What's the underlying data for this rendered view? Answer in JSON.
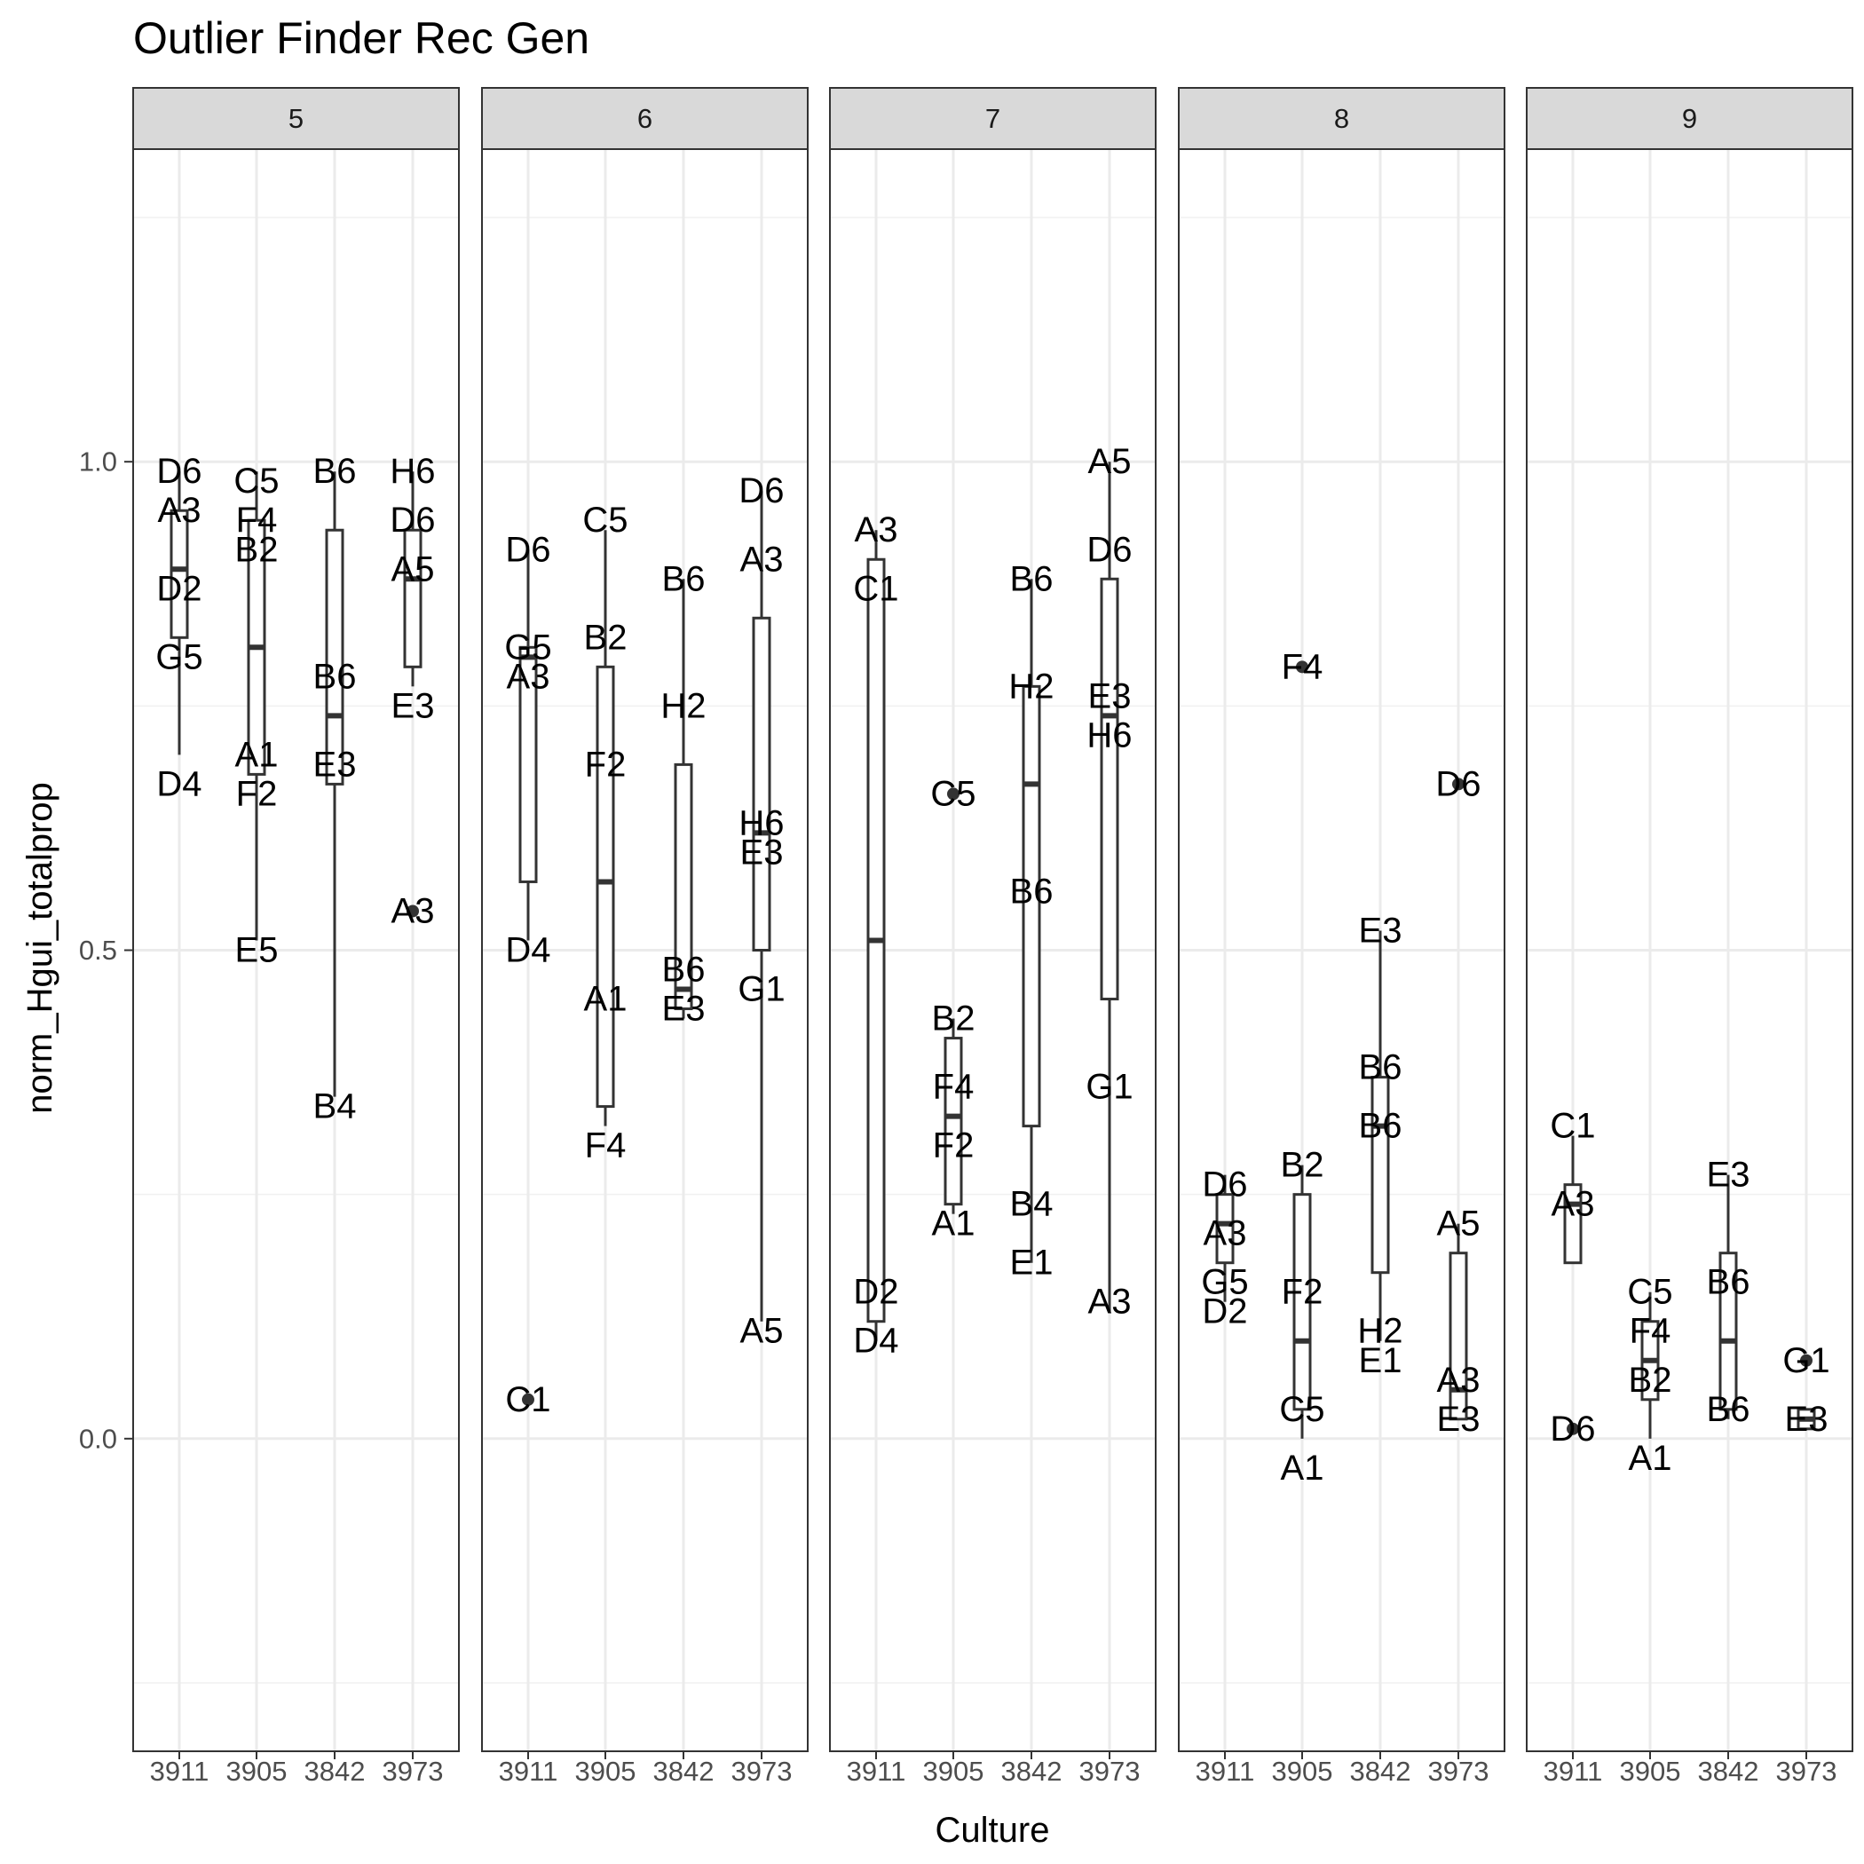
{
  "chart_data": {
    "type": "boxplot",
    "title": "Outlier Finder Rec Gen",
    "xlabel": "Culture",
    "ylabel": "norm_Hgui_totalprop",
    "ylim": [
      -0.32,
      1.32
    ],
    "yticks": [
      0.0,
      0.5,
      1.0
    ],
    "ytick_labels": [
      "0.0",
      "0.5",
      "1.0"
    ],
    "grid": true,
    "categories": [
      "3911",
      "3905",
      "3842",
      "3973"
    ],
    "panels": [
      {
        "facet": "5",
        "boxes": [
          {
            "culture": "3911",
            "lower": 0.7,
            "q1": 0.82,
            "median": 0.89,
            "q3": 0.95,
            "upper": 0.99,
            "outliers": []
          },
          {
            "culture": "3905",
            "lower": 0.51,
            "q1": 0.68,
            "median": 0.81,
            "q3": 0.94,
            "upper": 0.99,
            "outliers": []
          },
          {
            "culture": "3842",
            "lower": 0.35,
            "q1": 0.67,
            "median": 0.74,
            "q3": 0.93,
            "upper": 0.99,
            "outliers": []
          },
          {
            "culture": "3973",
            "lower": 0.77,
            "q1": 0.79,
            "median": 0.88,
            "q3": 0.93,
            "upper": 0.99,
            "outliers": [
              0.54
            ]
          }
        ],
        "labels": [
          {
            "culture": "3911",
            "text": "D6",
            "y": 0.99
          },
          {
            "culture": "3911",
            "text": "A3",
            "y": 0.95
          },
          {
            "culture": "3911",
            "text": "D2",
            "y": 0.87
          },
          {
            "culture": "3911",
            "text": "G5",
            "y": 0.8
          },
          {
            "culture": "3911",
            "text": "D4",
            "y": 0.67
          },
          {
            "culture": "3905",
            "text": "C5",
            "y": 0.98
          },
          {
            "culture": "3905",
            "text": "F4",
            "y": 0.94
          },
          {
            "culture": "3905",
            "text": "B2",
            "y": 0.91
          },
          {
            "culture": "3905",
            "text": "A1",
            "y": 0.7
          },
          {
            "culture": "3905",
            "text": "F2",
            "y": 0.66
          },
          {
            "culture": "3905",
            "text": "E5",
            "y": 0.5
          },
          {
            "culture": "3842",
            "text": "B6",
            "y": 0.99
          },
          {
            "culture": "3842",
            "text": "B6",
            "y": 0.78
          },
          {
            "culture": "3842",
            "text": "E3",
            "y": 0.69
          },
          {
            "culture": "3842",
            "text": "B4",
            "y": 0.34
          },
          {
            "culture": "3973",
            "text": "H6",
            "y": 0.99
          },
          {
            "culture": "3973",
            "text": "D6",
            "y": 0.94
          },
          {
            "culture": "3973",
            "text": "A5",
            "y": 0.89
          },
          {
            "culture": "3973",
            "text": "E3",
            "y": 0.75
          },
          {
            "culture": "3973",
            "text": "A3",
            "y": 0.54
          }
        ]
      },
      {
        "facet": "6",
        "boxes": [
          {
            "culture": "3911",
            "lower": 0.51,
            "q1": 0.57,
            "median": 0.8,
            "q3": 0.81,
            "upper": 0.91,
            "outliers": [
              0.04
            ]
          },
          {
            "culture": "3905",
            "lower": 0.32,
            "q1": 0.34,
            "median": 0.57,
            "q3": 0.79,
            "upper": 0.93,
            "outliers": []
          },
          {
            "culture": "3842",
            "lower": 0.43,
            "q1": 0.44,
            "median": 0.46,
            "q3": 0.69,
            "upper": 0.88,
            "outliers": []
          },
          {
            "culture": "3973",
            "lower": 0.12,
            "q1": 0.5,
            "median": 0.62,
            "q3": 0.84,
            "upper": 0.97,
            "outliers": []
          }
        ],
        "labels": [
          {
            "culture": "3911",
            "text": "D6",
            "y": 0.91
          },
          {
            "culture": "3911",
            "text": "G5",
            "y": 0.81
          },
          {
            "culture": "3911",
            "text": "A3",
            "y": 0.78
          },
          {
            "culture": "3911",
            "text": "D4",
            "y": 0.5
          },
          {
            "culture": "3911",
            "text": "C1",
            "y": 0.04
          },
          {
            "culture": "3905",
            "text": "C5",
            "y": 0.94
          },
          {
            "culture": "3905",
            "text": "B2",
            "y": 0.82
          },
          {
            "culture": "3905",
            "text": "F2",
            "y": 0.69
          },
          {
            "culture": "3905",
            "text": "A1",
            "y": 0.45
          },
          {
            "culture": "3905",
            "text": "F4",
            "y": 0.3
          },
          {
            "culture": "3842",
            "text": "B6",
            "y": 0.88
          },
          {
            "culture": "3842",
            "text": "H2",
            "y": 0.75
          },
          {
            "culture": "3842",
            "text": "B6",
            "y": 0.48
          },
          {
            "culture": "3842",
            "text": "E3",
            "y": 0.44
          },
          {
            "culture": "3973",
            "text": "D6",
            "y": 0.97
          },
          {
            "culture": "3973",
            "text": "A3",
            "y": 0.9
          },
          {
            "culture": "3973",
            "text": "H6",
            "y": 0.63
          },
          {
            "culture": "3973",
            "text": "E3",
            "y": 0.6
          },
          {
            "culture": "3973",
            "text": "G1",
            "y": 0.46
          },
          {
            "culture": "3973",
            "text": "A5",
            "y": 0.11
          }
        ]
      },
      {
        "facet": "7",
        "boxes": [
          {
            "culture": "3911",
            "lower": 0.1,
            "q1": 0.12,
            "median": 0.51,
            "q3": 0.9,
            "upper": 0.93,
            "outliers": []
          },
          {
            "culture": "3905",
            "lower": 0.23,
            "q1": 0.24,
            "median": 0.33,
            "q3": 0.41,
            "upper": 0.43,
            "outliers": [
              0.66
            ]
          },
          {
            "culture": "3842",
            "lower": 0.18,
            "q1": 0.32,
            "median": 0.67,
            "q3": 0.77,
            "upper": 0.88,
            "outliers": []
          },
          {
            "culture": "3973",
            "lower": 0.13,
            "q1": 0.45,
            "median": 0.74,
            "q3": 0.88,
            "upper": 1.0,
            "outliers": []
          }
        ],
        "labels": [
          {
            "culture": "3911",
            "text": "A3",
            "y": 0.93
          },
          {
            "culture": "3911",
            "text": "C1",
            "y": 0.87
          },
          {
            "culture": "3911",
            "text": "D2",
            "y": 0.15
          },
          {
            "culture": "3911",
            "text": "D4",
            "y": 0.1
          },
          {
            "culture": "3905",
            "text": "C5",
            "y": 0.66
          },
          {
            "culture": "3905",
            "text": "B2",
            "y": 0.43
          },
          {
            "culture": "3905",
            "text": "F4",
            "y": 0.36
          },
          {
            "culture": "3905",
            "text": "F2",
            "y": 0.3
          },
          {
            "culture": "3905",
            "text": "A1",
            "y": 0.22
          },
          {
            "culture": "3842",
            "text": "B6",
            "y": 0.88
          },
          {
            "culture": "3842",
            "text": "H2",
            "y": 0.77
          },
          {
            "culture": "3842",
            "text": "B6",
            "y": 0.56
          },
          {
            "culture": "3842",
            "text": "B4",
            "y": 0.24
          },
          {
            "culture": "3842",
            "text": "E1",
            "y": 0.18
          },
          {
            "culture": "3973",
            "text": "A5",
            "y": 1.0
          },
          {
            "culture": "3973",
            "text": "D6",
            "y": 0.91
          },
          {
            "culture": "3973",
            "text": "E3",
            "y": 0.76
          },
          {
            "culture": "3973",
            "text": "H6",
            "y": 0.72
          },
          {
            "culture": "3973",
            "text": "G1",
            "y": 0.36
          },
          {
            "culture": "3973",
            "text": "A3",
            "y": 0.14
          }
        ]
      },
      {
        "facet": "8",
        "boxes": [
          {
            "culture": "3911",
            "lower": 0.14,
            "q1": 0.18,
            "median": 0.22,
            "q3": 0.25,
            "upper": 0.27,
            "outliers": []
          },
          {
            "culture": "3905",
            "lower": 0.0,
            "q1": 0.03,
            "median": 0.1,
            "q3": 0.25,
            "upper": 0.28,
            "outliers": [
              0.79
            ]
          },
          {
            "culture": "3842",
            "lower": 0.1,
            "q1": 0.17,
            "median": 0.32,
            "q3": 0.37,
            "upper": 0.52,
            "outliers": []
          },
          {
            "culture": "3973",
            "lower": 0.02,
            "q1": 0.02,
            "median": 0.05,
            "q3": 0.19,
            "upper": 0.22,
            "outliers": [
              0.67
            ]
          }
        ],
        "labels": [
          {
            "culture": "3911",
            "text": "D6",
            "y": 0.26
          },
          {
            "culture": "3911",
            "text": "A3",
            "y": 0.21
          },
          {
            "culture": "3911",
            "text": "G5",
            "y": 0.16
          },
          {
            "culture": "3911",
            "text": "D2",
            "y": 0.13
          },
          {
            "culture": "3905",
            "text": "F4",
            "y": 0.79
          },
          {
            "culture": "3905",
            "text": "B2",
            "y": 0.28
          },
          {
            "culture": "3905",
            "text": "F2",
            "y": 0.15
          },
          {
            "culture": "3905",
            "text": "C5",
            "y": 0.03
          },
          {
            "culture": "3905",
            "text": "A1",
            "y": -0.03
          },
          {
            "culture": "3842",
            "text": "E3",
            "y": 0.52
          },
          {
            "culture": "3842",
            "text": "B6",
            "y": 0.38
          },
          {
            "culture": "3842",
            "text": "B6",
            "y": 0.32
          },
          {
            "culture": "3842",
            "text": "H2",
            "y": 0.11
          },
          {
            "culture": "3842",
            "text": "E1",
            "y": 0.08
          },
          {
            "culture": "3973",
            "text": "D6",
            "y": 0.67
          },
          {
            "culture": "3973",
            "text": "A5",
            "y": 0.22
          },
          {
            "culture": "3973",
            "text": "A3",
            "y": 0.06
          },
          {
            "culture": "3973",
            "text": "E3",
            "y": 0.02
          }
        ]
      },
      {
        "facet": "9",
        "boxes": [
          {
            "culture": "3911",
            "lower": 0.18,
            "q1": 0.18,
            "median": 0.24,
            "q3": 0.26,
            "upper": 0.31,
            "outliers": [
              0.01
            ]
          },
          {
            "culture": "3905",
            "lower": 0.0,
            "q1": 0.04,
            "median": 0.08,
            "q3": 0.12,
            "upper": 0.15,
            "outliers": []
          },
          {
            "culture": "3842",
            "lower": 0.02,
            "q1": 0.03,
            "median": 0.1,
            "q3": 0.19,
            "upper": 0.27,
            "outliers": []
          },
          {
            "culture": "3973",
            "lower": 0.01,
            "q1": 0.01,
            "median": 0.02,
            "q3": 0.03,
            "upper": 0.03,
            "outliers": [
              0.08
            ]
          }
        ],
        "labels": [
          {
            "culture": "3911",
            "text": "C1",
            "y": 0.32
          },
          {
            "culture": "3911",
            "text": "A3",
            "y": 0.24
          },
          {
            "culture": "3911",
            "text": "D6",
            "y": 0.01
          },
          {
            "culture": "3905",
            "text": "C5",
            "y": 0.15
          },
          {
            "culture": "3905",
            "text": "F4",
            "y": 0.11
          },
          {
            "culture": "3905",
            "text": "B2",
            "y": 0.06
          },
          {
            "culture": "3905",
            "text": "A1",
            "y": -0.02
          },
          {
            "culture": "3842",
            "text": "E3",
            "y": 0.27
          },
          {
            "culture": "3842",
            "text": "B6",
            "y": 0.16
          },
          {
            "culture": "3842",
            "text": "B6",
            "y": 0.03
          },
          {
            "culture": "3973",
            "text": "G1",
            "y": 0.08
          },
          {
            "culture": "3973",
            "text": "E3",
            "y": 0.02
          }
        ]
      }
    ]
  }
}
